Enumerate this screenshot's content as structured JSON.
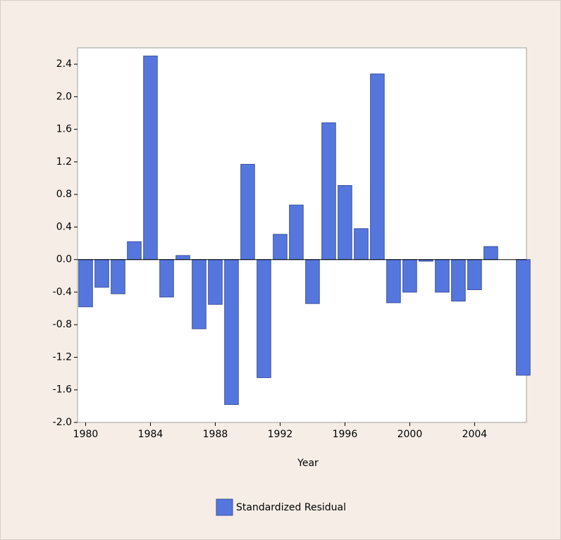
{
  "chart_data": {
    "type": "bar",
    "x_label": "Year",
    "x": [
      1980,
      1981,
      1982,
      1983,
      1984,
      1985,
      1986,
      1987,
      1988,
      1989,
      1990,
      1991,
      1992,
      1993,
      1994,
      1995,
      1996,
      1997,
      1998,
      1999,
      2000,
      2001,
      2002,
      2003,
      2004,
      2005,
      2006,
      2007
    ],
    "series": [
      {
        "name": "Standardized Residual",
        "color": "#5577dd",
        "values": [
          -0.58,
          -0.34,
          -0.42,
          0.22,
          2.5,
          -0.46,
          0.05,
          -0.85,
          -0.55,
          -1.78,
          1.17,
          -1.45,
          0.31,
          0.67,
          -0.54,
          1.68,
          0.91,
          0.38,
          2.28,
          -0.53,
          -0.4,
          -0.02,
          -0.4,
          -0.51,
          -0.37,
          0.16,
          0.0,
          -1.42
        ]
      }
    ],
    "xlim": [
      1979.5,
      2007.2
    ],
    "xticks": [
      1980,
      1984,
      1988,
      1992,
      1996,
      2000,
      2004
    ],
    "ylim": [
      -2.0,
      2.6
    ],
    "yticks": [
      {
        "value": -2,
        "label": "-2.0"
      },
      -1.6,
      -1.2,
      -0.8,
      -0.4,
      {
        "value": 0,
        "label": "0.0"
      },
      0.4,
      0.8,
      1.2,
      1.6,
      {
        "value": 2,
        "label": "2.0"
      },
      2.4
    ]
  }
}
